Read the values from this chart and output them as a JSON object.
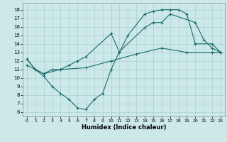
{
  "xlabel": "Humidex (Indice chaleur)",
  "bg_color": "#cce8e8",
  "line_color": "#1a6b6b",
  "grid_color": "#aad0d0",
  "xlim": [
    -0.5,
    23.5
  ],
  "ylim": [
    5.5,
    18.8
  ],
  "yticks": [
    6,
    7,
    8,
    9,
    10,
    11,
    12,
    13,
    14,
    15,
    16,
    17,
    18
  ],
  "xticks": [
    0,
    1,
    2,
    3,
    4,
    5,
    6,
    7,
    8,
    9,
    10,
    11,
    12,
    13,
    14,
    15,
    16,
    17,
    18,
    19,
    20,
    21,
    22,
    23
  ],
  "line1_x": [
    0,
    1,
    2,
    3,
    4,
    5,
    6,
    7,
    8,
    9,
    10,
    11,
    14,
    15,
    16,
    17,
    20,
    21,
    22,
    23
  ],
  "line1_y": [
    12.2,
    11.0,
    10.2,
    9.0,
    8.2,
    7.5,
    6.5,
    6.3,
    7.5,
    8.2,
    11.0,
    13.1,
    15.9,
    16.5,
    16.5,
    17.5,
    16.5,
    14.5,
    13.5,
    13.0
  ],
  "line2_x": [
    0,
    1,
    2,
    3,
    4,
    5,
    6,
    7,
    10,
    11,
    12,
    14,
    15,
    16,
    17,
    18,
    19,
    20,
    22,
    23
  ],
  "line2_y": [
    12.2,
    11.0,
    10.5,
    11.0,
    11.0,
    11.5,
    12.0,
    12.5,
    15.2,
    13.0,
    15.0,
    17.5,
    17.8,
    18.0,
    18.0,
    18.0,
    17.5,
    14.0,
    14.0,
    13.0
  ],
  "line3_x": [
    0,
    2,
    4,
    7,
    10,
    13,
    16,
    19,
    22,
    23
  ],
  "line3_y": [
    11.5,
    10.5,
    11.0,
    11.2,
    12.0,
    12.8,
    13.5,
    13.0,
    13.0,
    13.0
  ],
  "tick_fontsize": 5,
  "xlabel_fontsize": 6
}
